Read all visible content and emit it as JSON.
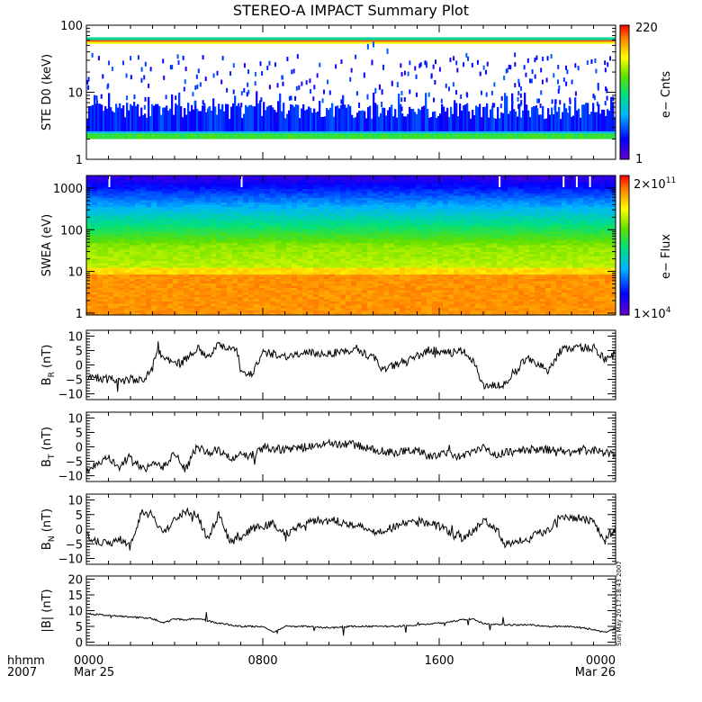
{
  "chart_data": [
    {
      "type": "heatmap",
      "panel": "ste",
      "title": "STEREO-A IMPACT Summary Plot",
      "ylabel": "STE D0 (keV)",
      "yscale": "log",
      "ylim": [
        1,
        100
      ],
      "ytick_labels": [
        "1",
        "10",
        "100"
      ],
      "ytick_values": [
        1,
        10,
        100
      ],
      "colorbar": {
        "label": "e− Cnts",
        "max_label": "220",
        "min_label": "1",
        "range": [
          1,
          220
        ]
      },
      "description_values": {
        "steady_band_keV": [
          2.0,
          2.6
        ],
        "top_band_keV": [
          55,
          66
        ]
      }
    },
    {
      "type": "heatmap",
      "panel": "swea",
      "ylabel": "SWEA (eV)",
      "yscale": "log",
      "ylim": [
        0.9,
        2000
      ],
      "ytick_labels": [
        "1",
        "10",
        "100",
        "1000"
      ],
      "ytick_values": [
        1,
        10,
        100,
        1000
      ],
      "colorbar": {
        "label": "e− Flux",
        "max_base": "2×10",
        "max_exp": "11",
        "min_base": "1×10",
        "min_exp": "4",
        "range": [
          10000,
          200000000000
        ]
      }
    },
    {
      "type": "line",
      "panel": "br",
      "ylabel_base": "B",
      "ylabel_sub": "R",
      "ylabel_unit": " (nT)",
      "ylim": [
        -12,
        12
      ],
      "ytick_labels": [
        "−10",
        "−5",
        "0",
        "5",
        "10"
      ],
      "ytick_values": [
        -10,
        -5,
        0,
        5,
        10
      ],
      "x": [
        0,
        1,
        1.5,
        2,
        2.5,
        3,
        3.2,
        3.5,
        4,
        4.5,
        5,
        5.5,
        6,
        6.5,
        6.8,
        7,
        7.5,
        8,
        8.5,
        9,
        10,
        11,
        12,
        13,
        13.5,
        14,
        14.5,
        15,
        15.5,
        16,
        16.5,
        17,
        17.5,
        18,
        19,
        20,
        20.5,
        21,
        21.5,
        22,
        23,
        23.5,
        24
      ],
      "y": [
        -4,
        -5,
        -5.5,
        -5,
        -5.5,
        -1,
        5,
        3,
        0,
        2,
        6,
        3,
        7,
        6,
        6,
        -2,
        -3,
        4,
        4,
        3,
        4,
        4,
        5,
        3,
        -2,
        0,
        1,
        3,
        5,
        5,
        4,
        5,
        2,
        -7,
        -7,
        3,
        0,
        -2,
        5,
        6,
        6,
        2,
        4
      ]
    },
    {
      "type": "line",
      "panel": "bt",
      "ylabel_base": "B",
      "ylabel_sub": "T",
      "ylabel_unit": " (nT)",
      "ylim": [
        -12,
        12
      ],
      "ytick_labels": [
        "−10",
        "−5",
        "0",
        "5",
        "10"
      ],
      "ytick_values": [
        -10,
        -5,
        0,
        5,
        10
      ],
      "x": [
        0,
        0.5,
        1,
        1.5,
        2,
        2.5,
        3,
        3.5,
        4,
        4.5,
        5,
        5.5,
        6,
        6.5,
        7,
        7.5,
        8,
        9,
        10,
        11,
        12,
        13,
        14,
        15,
        15.5,
        16,
        16.5,
        17,
        17.5,
        18,
        18.5,
        19,
        20,
        21,
        22,
        23,
        24
      ],
      "y": [
        -8,
        -6,
        -4,
        -7,
        -3,
        -8,
        -6,
        -7,
        -2,
        -8,
        0,
        -2,
        -1,
        -4,
        -3,
        -3,
        0,
        -1,
        0,
        1,
        1,
        -1,
        -2,
        -1,
        -3,
        -3,
        -2,
        -4,
        -1,
        0,
        -3,
        -2,
        -1,
        -1,
        -2,
        -1,
        -3
      ]
    },
    {
      "type": "line",
      "panel": "bn",
      "ylabel_base": "B",
      "ylabel_sub": "N",
      "ylabel_unit": " (nT)",
      "ylim": [
        -12,
        12
      ],
      "ytick_labels": [
        "−10",
        "−5",
        "0",
        "5",
        "10"
      ],
      "ytick_values": [
        -10,
        -5,
        0,
        5,
        10
      ],
      "x": [
        0,
        0.5,
        1,
        1.5,
        2,
        2.5,
        3,
        3.5,
        4,
        4.5,
        5,
        5.5,
        6,
        6.5,
        7,
        7.5,
        8,
        8.5,
        9,
        10,
        11,
        12,
        13,
        13.5,
        14,
        15,
        16,
        17,
        17.5,
        18,
        18.5,
        19,
        20,
        21,
        21.5,
        22,
        23,
        23.5,
        24
      ],
      "y": [
        -2,
        -4,
        -5,
        -3,
        -6,
        6,
        5,
        -2,
        4,
        6,
        5,
        -3,
        5,
        -4,
        -3,
        0,
        1,
        2,
        -2,
        3,
        3,
        2,
        -1,
        0,
        1,
        3,
        1,
        -3,
        -1,
        3,
        1,
        -5,
        -3,
        0,
        5,
        4,
        3,
        -4,
        0
      ]
    },
    {
      "type": "line",
      "panel": "bmag",
      "ylabel": "|B| (nT)",
      "ylim": [
        -1,
        21
      ],
      "ytick_labels": [
        "0",
        "5",
        "10",
        "15",
        "20"
      ],
      "ytick_values": [
        0,
        5,
        10,
        15,
        20
      ],
      "x": [
        0,
        1,
        2,
        3,
        3.5,
        4,
        4.5,
        5,
        6,
        7,
        8,
        8.5,
        9,
        10,
        11,
        12,
        13,
        14,
        15,
        16,
        17,
        17.5,
        18,
        19,
        20,
        21,
        22,
        23,
        23.5,
        24
      ],
      "y": [
        9,
        8.5,
        8,
        7.5,
        6,
        7.5,
        7,
        7.5,
        6,
        5,
        5,
        3,
        5,
        5,
        4.5,
        5,
        5,
        5,
        5.5,
        6,
        7,
        7.5,
        6,
        5.5,
        5.5,
        5,
        5,
        4,
        3,
        4.5
      ]
    }
  ],
  "time_axis": {
    "row1_label": "hhmm",
    "row2_label": "2007",
    "ticks": [
      {
        "hhmm": "0000",
        "date": "Mar 25",
        "hour": 0
      },
      {
        "hhmm": "0800",
        "date": "",
        "hour": 8
      },
      {
        "hhmm": "1600",
        "date": "",
        "hour": 16
      },
      {
        "hhmm": "0000",
        "date": "Mar 26",
        "hour": 24
      }
    ]
  },
  "stamp": "Sun May 20 17:18:43 2007",
  "colors": {
    "trace": "#000000"
  }
}
